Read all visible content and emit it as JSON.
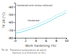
{
  "chart_data": {
    "type": "line",
    "xlabel": "Work hardening (%)",
    "ylabel": "TK 28 (°C)",
    "x": [
      0,
      1,
      2,
      3,
      4,
      5,
      6,
      7,
      8,
      9,
      10
    ],
    "xlim": [
      0,
      10
    ],
    "ylim": [
      -80,
      -35
    ],
    "xticks": [
      0,
      2,
      4,
      6,
      8,
      10
    ],
    "yticks": [
      -80,
      -70,
      -60,
      -50,
      -40
    ],
    "series": [
      {
        "name": "Hardened and stress-relieved",
        "color": "#7dd8e8",
        "line_style": "solid",
        "values": [
          -74,
          -73,
          -71,
          -69,
          -67,
          -64,
          -61,
          -58,
          -54,
          -51,
          -48
        ]
      },
      {
        "name": "Hardened",
        "color": "#7dd8e8",
        "line_style": "dotted",
        "values": [
          -72,
          -70,
          -68,
          -66,
          -64,
          -61,
          -58,
          -55,
          -51,
          -48,
          -45
        ]
      }
    ],
    "annotations": [
      "TK 28   Transition temperature at which",
      "               fracture is a minimum of 28 J"
    ]
  }
}
